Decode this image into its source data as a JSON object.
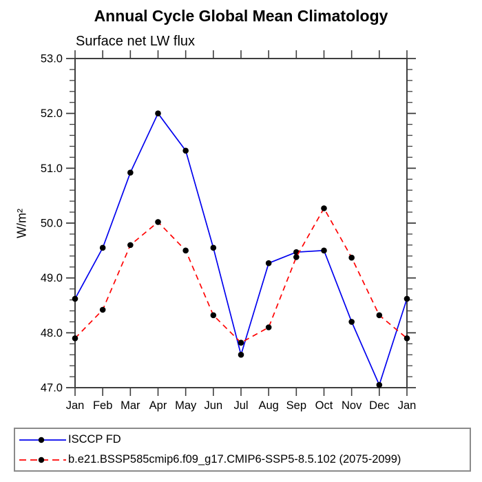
{
  "header": {
    "title": "Annual Cycle Global Mean Climatology",
    "subtitle": "Surface net LW flux"
  },
  "chart_data": {
    "type": "line",
    "title": "Annual Cycle Global Mean Climatology",
    "subtitle": "Surface net LW flux",
    "xlabel": "",
    "ylabel": "W/m²",
    "categories": [
      "Jan",
      "Feb",
      "Mar",
      "Apr",
      "May",
      "Jun",
      "Jul",
      "Aug",
      "Sep",
      "Oct",
      "Nov",
      "Dec",
      "Jan"
    ],
    "series": [
      {
        "name": "ISCCP FD",
        "color": "#0000ee",
        "style": "solid",
        "marker": "circle",
        "marker_color": "#000000",
        "values": [
          48.62,
          49.55,
          50.92,
          52.0,
          51.32,
          49.55,
          47.6,
          49.27,
          49.47,
          49.5,
          48.2,
          47.05,
          48.62
        ]
      },
      {
        "name": "b.e21.BSSP585cmip6.f09_g17.CMIP6-SSP5-8.5.102 (2075-2099)",
        "color": "#ff0000",
        "style": "dashed",
        "marker": "circle",
        "marker_color": "#000000",
        "values": [
          47.9,
          48.42,
          49.6,
          50.02,
          49.5,
          48.32,
          47.82,
          48.1,
          49.38,
          50.27,
          49.37,
          48.32,
          47.9
        ]
      }
    ],
    "ylim": [
      47.0,
      53.0
    ],
    "ytick_interval": 1.0,
    "ytick_minor_interval": 0.2,
    "ytick_labels": [
      "47.0",
      "48.0",
      "49.0",
      "50.0",
      "51.0",
      "52.0",
      "53.0"
    ],
    "grid": false,
    "legend_position": "bottom",
    "axis_color": "#3d3d3d"
  }
}
